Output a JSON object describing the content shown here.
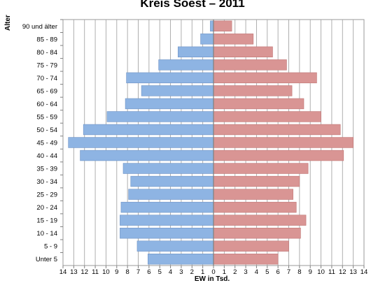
{
  "chart_data": {
    "type": "bar",
    "title": "Kreis Soest – 2011",
    "ylabel": "Alter",
    "xlabel": "EW in Tsd.",
    "xlim": [
      -14,
      14
    ],
    "grid": true,
    "categories": [
      "90 und älter",
      "85 - 89",
      "80 - 84",
      "75 - 79",
      "70 - 74",
      "65 - 69",
      "60 - 64",
      "55 - 59",
      "50 - 54",
      "45 - 49",
      "40 - 44",
      "35 - 39",
      "30 - 34",
      "25 - 29",
      "20 - 24",
      "15 - 19",
      "10 - 14",
      "5 - 9",
      "Unter 5"
    ],
    "x_ticks": [
      "14",
      "13",
      "12",
      "11",
      "10",
      "9",
      "8",
      "7",
      "6",
      "5",
      "4",
      "3",
      "2",
      "1",
      "0",
      "1",
      "2",
      "3",
      "4",
      "5",
      "6",
      "7",
      "8",
      "9",
      "10",
      "11",
      "12",
      "13",
      "14"
    ],
    "series": [
      {
        "color": "#8eb4e3",
        "values": [
          0.3,
          1.2,
          3.3,
          5.1,
          8.1,
          6.7,
          8.2,
          9.9,
          12.1,
          13.5,
          12.4,
          8.4,
          7.7,
          7.9,
          8.6,
          8.7,
          8.7,
          7.1,
          6.1
        ]
      },
      {
        "color": "#d99594",
        "values": [
          1.7,
          3.7,
          5.5,
          6.8,
          9.6,
          7.3,
          8.4,
          10.0,
          11.8,
          13.0,
          12.1,
          8.8,
          8.0,
          7.4,
          7.7,
          8.6,
          8.1,
          7.0,
          6.0
        ]
      }
    ]
  }
}
